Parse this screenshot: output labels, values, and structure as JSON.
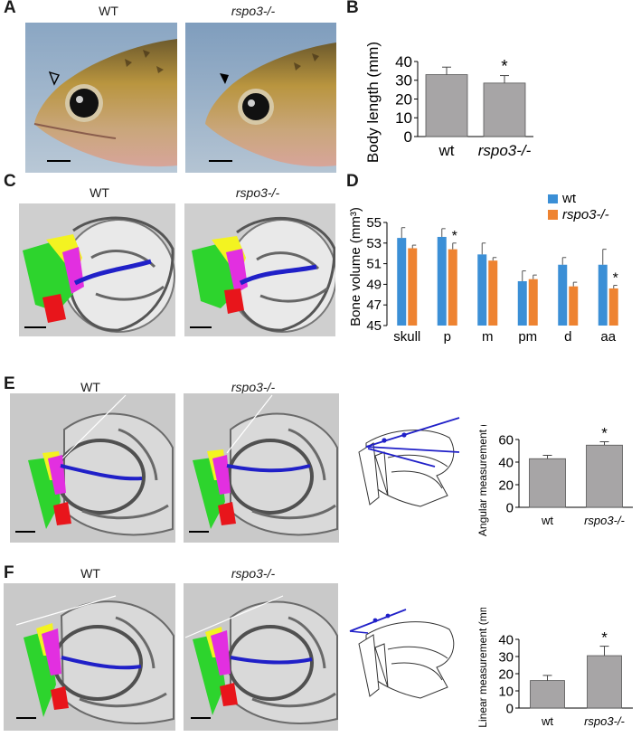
{
  "panels": {
    "A": {
      "label": "A",
      "left_title": "WT",
      "right_title": "rspo3-/-"
    },
    "B": {
      "label": "B"
    },
    "C": {
      "label": "C",
      "left_title": "WT",
      "right_title": "rspo3-/-"
    },
    "D": {
      "label": "D"
    },
    "E": {
      "label": "E",
      "left_title": "WT",
      "right_title": "rspo3-/-"
    },
    "F": {
      "label": "F",
      "left_title": "WT",
      "right_title": "rspo3-/-"
    }
  },
  "colors": {
    "bar_gray": "#a7a5a6",
    "wt_blue": "#3b8fd6",
    "mut_orange": "#ee8331",
    "bone_green": "#2dd42d",
    "bone_red": "#e8151b",
    "bone_magenta": "#e22fe0",
    "bone_yellow": "#f3f321",
    "ligament_blue": "#2020c8"
  },
  "chart_data": [
    {
      "id": "B",
      "type": "bar",
      "categories": [
        "wt",
        "rspo3-/-"
      ],
      "values": [
        33,
        28.5
      ],
      "errors": [
        4,
        4
      ],
      "ylabel": "Body length (mm)",
      "ylim": [
        0,
        40
      ],
      "yticks": [
        "0",
        "10",
        "20",
        "30",
        "40"
      ],
      "significance": [
        "",
        "*"
      ]
    },
    {
      "id": "D",
      "type": "bar",
      "categories": [
        "skull",
        "p",
        "m",
        "pm",
        "d",
        "aa"
      ],
      "series": [
        {
          "name": "wt",
          "values": [
            53.5,
            53.6,
            51.9,
            49.3,
            50.9,
            50.9
          ],
          "errors": [
            1.0,
            0.8,
            1.1,
            1.0,
            0.7,
            1.5
          ]
        },
        {
          "name": "rspo3-/-",
          "values": [
            52.5,
            52.4,
            51.3,
            49.5,
            48.8,
            48.6
          ],
          "errors": [
            0.3,
            0.6,
            0.3,
            0.4,
            0.4,
            0.3
          ]
        }
      ],
      "significance": [
        "",
        "*",
        "",
        "",
        "",
        "*"
      ],
      "ylabel": "Bone volume (mm³)",
      "ylim": [
        45,
        55
      ],
      "yticks": [
        "45",
        "47",
        "49",
        "51",
        "53",
        "55"
      ],
      "legend": "top-right"
    },
    {
      "id": "E",
      "type": "bar",
      "categories": [
        "wt",
        "rspo3-/-"
      ],
      "values": [
        43,
        55
      ],
      "errors": [
        3,
        3
      ],
      "ylabel": "Angular measurement (°)",
      "ylim": [
        0,
        60
      ],
      "yticks": [
        "0",
        "20",
        "40",
        "60"
      ],
      "significance": [
        "",
        "*"
      ]
    },
    {
      "id": "F",
      "type": "bar",
      "categories": [
        "wt",
        "rspo3-/-"
      ],
      "values": [
        16,
        30.5
      ],
      "errors": [
        3,
        5.5
      ],
      "ylabel": "Linear measurement (mm)",
      "ylim": [
        0,
        40
      ],
      "yticks": [
        "0",
        "10",
        "20",
        "30",
        "40"
      ],
      "significance": [
        "",
        "*"
      ]
    }
  ]
}
